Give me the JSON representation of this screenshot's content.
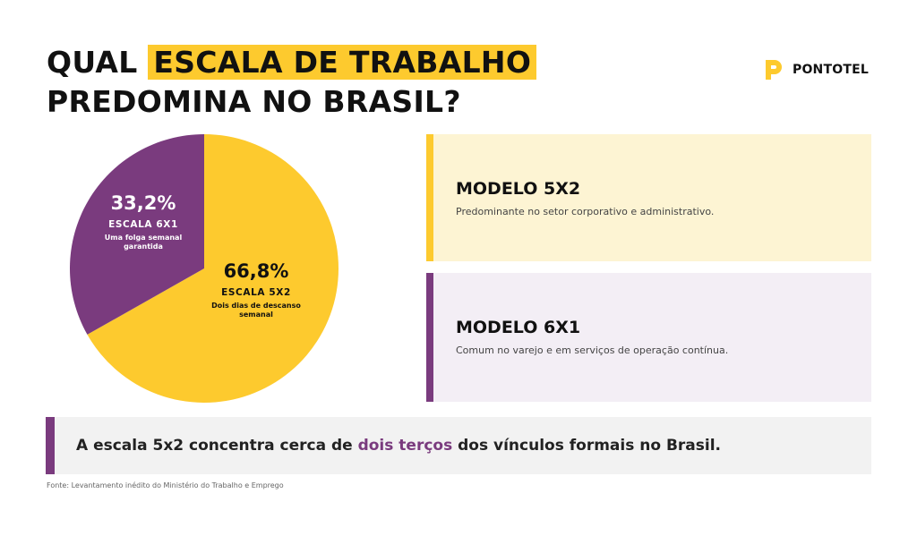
{
  "header": {
    "title_part1": "QUAL ",
    "title_highlight": "ESCALA DE TRABALHO",
    "title_line2": "PREDOMINA NO BRASIL?"
  },
  "logo": {
    "icon": "pontotel-logo-icon",
    "text": "PONTOTEL"
  },
  "colors": {
    "yellow": "#fdca2e",
    "purple": "#7a3b7e"
  },
  "chart_data": {
    "type": "pie",
    "slices": [
      {
        "pct_label": "66,8%",
        "value": 66.8,
        "name": "ESCALA 5X2",
        "desc1": "Dois dias de descanso",
        "desc2": "semanal",
        "color": "#fdca2e"
      },
      {
        "pct_label": "33,2%",
        "value": 33.2,
        "name": "ESCALA 6X1",
        "desc1": "Uma folga semanal",
        "desc2": "garantida",
        "color": "#7a3b7e"
      }
    ]
  },
  "cards": [
    {
      "title": "MODELO 5X2",
      "desc": "Predominante no setor corporativo e administrativo."
    },
    {
      "title": "MODELO 6X1",
      "desc": "Comum no varejo e em serviços de operação contínua."
    }
  ],
  "callout": {
    "before": "A escala 5x2 concentra cerca de ",
    "accent": "dois terços",
    "after": " dos vínculos formais no Brasil."
  },
  "source": "Fonte: Levantamento inédito do Ministério do Trabalho e Emprego"
}
